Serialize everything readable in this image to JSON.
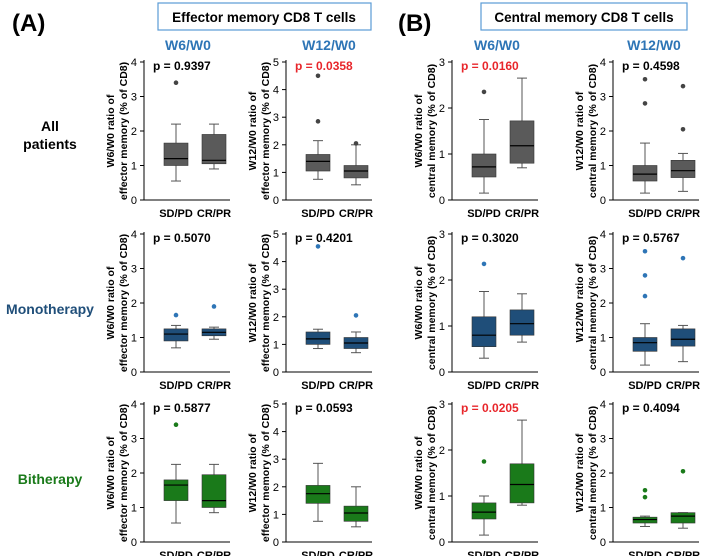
{
  "panels": {
    "A": {
      "letter": "(A)",
      "title": "Effector memory CD8 T cells"
    },
    "B": {
      "letter": "(B)",
      "title": "Central memory CD8 T cells"
    }
  },
  "column_headers": [
    "W6/W0",
    "W12/W0",
    "W6/W0",
    "W12/W0"
  ],
  "row_labels": [
    {
      "lines": [
        "All",
        "patients"
      ],
      "color": "#000000"
    },
    {
      "lines": [
        "Monotherapy"
      ],
      "color": "#1f4e79"
    },
    {
      "lines": [
        "Bitherapy"
      ],
      "color": "#1a7a1a"
    }
  ],
  "colors": {
    "header_blue": "#2e75b6",
    "box_border": "#5b9bd5",
    "significant_p": "#e8262b",
    "all_patients_fill": "#5a5a5a",
    "monotherapy_fill": "#1f4e79",
    "bitherapy_fill": "#1a7a1a"
  },
  "chart_data": [
    {
      "type": "box",
      "row": 0,
      "col": 0,
      "fill": "#5a5a5a",
      "title": "p = 0.9397",
      "significant": false,
      "ylabel": [
        "W6/W0 ratio of",
        "effector memory (% of CD8)"
      ],
      "ylim": [
        0,
        4
      ],
      "yticks": [
        "0",
        "1",
        "2",
        "3",
        "4"
      ],
      "categories": [
        "SD/PD",
        "CR/PR"
      ],
      "boxes": [
        {
          "lo": 0.55,
          "q1": 1.0,
          "med": 1.2,
          "q3": 1.65,
          "hi": 2.2,
          "outliers": [
            3.4
          ]
        },
        {
          "lo": 0.9,
          "q1": 1.05,
          "med": 1.15,
          "q3": 1.9,
          "hi": 2.2,
          "outliers": []
        }
      ]
    },
    {
      "type": "box",
      "row": 0,
      "col": 1,
      "fill": "#5a5a5a",
      "title": "p = 0.0358",
      "significant": true,
      "ylabel": [
        "W12/W0 ratio of",
        "effector memory (% of CD8)"
      ],
      "ylim": [
        0,
        5
      ],
      "yticks": [
        "0",
        "1",
        "2",
        "3",
        "4",
        "5"
      ],
      "categories": [
        "SD/PD",
        "CR/PR"
      ],
      "boxes": [
        {
          "lo": 0.75,
          "q1": 1.05,
          "med": 1.4,
          "q3": 1.65,
          "hi": 2.15,
          "outliers": [
            4.5,
            2.85
          ]
        },
        {
          "lo": 0.55,
          "q1": 0.8,
          "med": 1.05,
          "q3": 1.25,
          "hi": 2.0,
          "outliers": [
            2.05
          ]
        }
      ]
    },
    {
      "type": "box",
      "row": 0,
      "col": 2,
      "fill": "#5a5a5a",
      "title": "p = 0.0160",
      "significant": true,
      "ylabel": [
        "W6/W0 ratio of",
        "central memory (% of CD8)"
      ],
      "ylim": [
        0,
        3
      ],
      "yticks": [
        "0",
        "1",
        "2",
        "3"
      ],
      "categories": [
        "SD/PD",
        "CR/PR"
      ],
      "boxes": [
        {
          "lo": 0.15,
          "q1": 0.5,
          "med": 0.72,
          "q3": 1.0,
          "hi": 1.75,
          "outliers": [
            2.35
          ]
        },
        {
          "lo": 0.7,
          "q1": 0.8,
          "med": 1.18,
          "q3": 1.72,
          "hi": 2.65,
          "outliers": []
        }
      ]
    },
    {
      "type": "box",
      "row": 0,
      "col": 3,
      "fill": "#5a5a5a",
      "title": "p = 0.4598",
      "significant": false,
      "ylabel": [
        "W12/W0 ratio of",
        "central memory (% of CD8)"
      ],
      "ylim": [
        0,
        4
      ],
      "yticks": [
        "0",
        "1",
        "2",
        "3",
        "4"
      ],
      "categories": [
        "SD/PD",
        "CR/PR"
      ],
      "boxes": [
        {
          "lo": 0.2,
          "q1": 0.55,
          "med": 0.75,
          "q3": 1.0,
          "hi": 1.65,
          "outliers": [
            3.5,
            2.8
          ]
        },
        {
          "lo": 0.25,
          "q1": 0.65,
          "med": 0.85,
          "q3": 1.15,
          "hi": 1.35,
          "outliers": [
            3.3,
            2.05
          ]
        }
      ]
    },
    {
      "type": "box",
      "row": 1,
      "col": 0,
      "fill": "#1f4e79",
      "title": "p = 0.5070",
      "significant": false,
      "ylabel": [
        "W6/W0 ratio of",
        "effector memory (% of CD8)"
      ],
      "ylim": [
        0,
        4
      ],
      "yticks": [
        "0",
        "1",
        "2",
        "3",
        "4"
      ],
      "categories": [
        "SD/PD",
        "CR/PR"
      ],
      "boxes": [
        {
          "lo": 0.7,
          "q1": 0.9,
          "med": 1.1,
          "q3": 1.25,
          "hi": 1.35,
          "outliers": [
            1.65
          ]
        },
        {
          "lo": 0.95,
          "q1": 1.05,
          "med": 1.15,
          "q3": 1.25,
          "hi": 1.3,
          "outliers": [
            1.9
          ]
        }
      ]
    },
    {
      "type": "box",
      "row": 1,
      "col": 1,
      "fill": "#1f4e79",
      "title": "p = 0.4201",
      "significant": false,
      "ylabel": [
        "W12/W0 ratio of",
        "effector memory (% of CD8)"
      ],
      "ylim": [
        0,
        5
      ],
      "yticks": [
        "0",
        "1",
        "2",
        "3",
        "4",
        "5"
      ],
      "categories": [
        "SD/PD",
        "CR/PR"
      ],
      "boxes": [
        {
          "lo": 0.85,
          "q1": 1.0,
          "med": 1.2,
          "q3": 1.45,
          "hi": 1.55,
          "outliers": [
            4.55
          ]
        },
        {
          "lo": 0.7,
          "q1": 0.85,
          "med": 1.05,
          "q3": 1.25,
          "hi": 1.45,
          "outliers": [
            2.05
          ]
        }
      ]
    },
    {
      "type": "box",
      "row": 1,
      "col": 2,
      "fill": "#1f4e79",
      "title": "p = 0.3020",
      "significant": false,
      "ylabel": [
        "W6/W0 ratio of",
        "central memory (% of CD8)"
      ],
      "ylim": [
        0,
        3
      ],
      "yticks": [
        "0",
        "1",
        "2",
        "3"
      ],
      "categories": [
        "SD/PD",
        "CR/PR"
      ],
      "boxes": [
        {
          "lo": 0.3,
          "q1": 0.55,
          "med": 0.8,
          "q3": 1.2,
          "hi": 1.75,
          "outliers": [
            2.35
          ]
        },
        {
          "lo": 0.65,
          "q1": 0.8,
          "med": 1.05,
          "q3": 1.35,
          "hi": 1.7,
          "outliers": []
        }
      ]
    },
    {
      "type": "box",
      "row": 1,
      "col": 3,
      "fill": "#1f4e79",
      "title": "p = 0.5767",
      "significant": false,
      "ylabel": [
        "W12/W0 ratio of",
        "central memory (% of CD8)"
      ],
      "ylim": [
        0,
        4
      ],
      "yticks": [
        "0",
        "1",
        "2",
        "3",
        "4"
      ],
      "categories": [
        "SD/PD",
        "CR/PR"
      ],
      "boxes": [
        {
          "lo": 0.2,
          "q1": 0.6,
          "med": 0.85,
          "q3": 1.0,
          "hi": 1.4,
          "outliers": [
            3.5,
            2.8,
            2.2
          ]
        },
        {
          "lo": 0.3,
          "q1": 0.75,
          "med": 0.95,
          "q3": 1.25,
          "hi": 1.35,
          "outliers": [
            3.3
          ]
        }
      ]
    },
    {
      "type": "box",
      "row": 2,
      "col": 0,
      "fill": "#1a7a1a",
      "title": "p = 0.5877",
      "significant": false,
      "ylabel": [
        "W6/W0 ratio of",
        "effector memory (% of CD8)"
      ],
      "ylim": [
        0,
        4
      ],
      "yticks": [
        "0",
        "1",
        "2",
        "3",
        "4"
      ],
      "categories": [
        "SD/PD",
        "CR/PR"
      ],
      "boxes": [
        {
          "lo": 0.55,
          "q1": 1.2,
          "med": 1.65,
          "q3": 1.8,
          "hi": 2.25,
          "outliers": [
            3.4
          ]
        },
        {
          "lo": 0.85,
          "q1": 1.0,
          "med": 1.2,
          "q3": 1.95,
          "hi": 2.25,
          "outliers": []
        }
      ]
    },
    {
      "type": "box",
      "row": 2,
      "col": 1,
      "fill": "#1a7a1a",
      "title": "p = 0.0593",
      "significant": false,
      "ylabel": [
        "W12/W0 ratio of",
        "effector memory (% of CD8)"
      ],
      "ylim": [
        0,
        5
      ],
      "yticks": [
        "0",
        "1",
        "2",
        "3",
        "4",
        "5"
      ],
      "categories": [
        "SD/PD",
        "CR/PR"
      ],
      "boxes": [
        {
          "lo": 0.75,
          "q1": 1.4,
          "med": 1.75,
          "q3": 2.05,
          "hi": 2.85,
          "outliers": []
        },
        {
          "lo": 0.55,
          "q1": 0.75,
          "med": 1.05,
          "q3": 1.3,
          "hi": 2.0,
          "outliers": []
        }
      ]
    },
    {
      "type": "box",
      "row": 2,
      "col": 2,
      "fill": "#1a7a1a",
      "title": "p = 0.0205",
      "significant": true,
      "ylabel": [
        "W6/W0 ratio of",
        "central memory (% of CD8)"
      ],
      "ylim": [
        0,
        3
      ],
      "yticks": [
        "0",
        "1",
        "2",
        "3"
      ],
      "categories": [
        "SD/PD",
        "CR/PR"
      ],
      "boxes": [
        {
          "lo": 0.15,
          "q1": 0.5,
          "med": 0.65,
          "q3": 0.85,
          "hi": 1.0,
          "outliers": [
            1.75
          ]
        },
        {
          "lo": 0.8,
          "q1": 0.85,
          "med": 1.25,
          "q3": 1.7,
          "hi": 2.65,
          "outliers": []
        }
      ]
    },
    {
      "type": "box",
      "row": 2,
      "col": 3,
      "fill": "#1a7a1a",
      "title": "p = 0.4094",
      "significant": false,
      "ylabel": [
        "W12/W0 ratio of",
        "central memory (% of CD8)"
      ],
      "ylim": [
        0,
        4
      ],
      "yticks": [
        "0",
        "1",
        "2",
        "3",
        "4"
      ],
      "categories": [
        "SD/PD",
        "CR/PR"
      ],
      "boxes": [
        {
          "lo": 0.45,
          "q1": 0.55,
          "med": 0.65,
          "q3": 0.72,
          "hi": 0.75,
          "outliers": [
            1.5,
            1.3
          ]
        },
        {
          "lo": 0.4,
          "q1": 0.55,
          "med": 0.75,
          "q3": 0.85,
          "hi": 0.85,
          "outliers": [
            2.05
          ]
        }
      ]
    }
  ]
}
